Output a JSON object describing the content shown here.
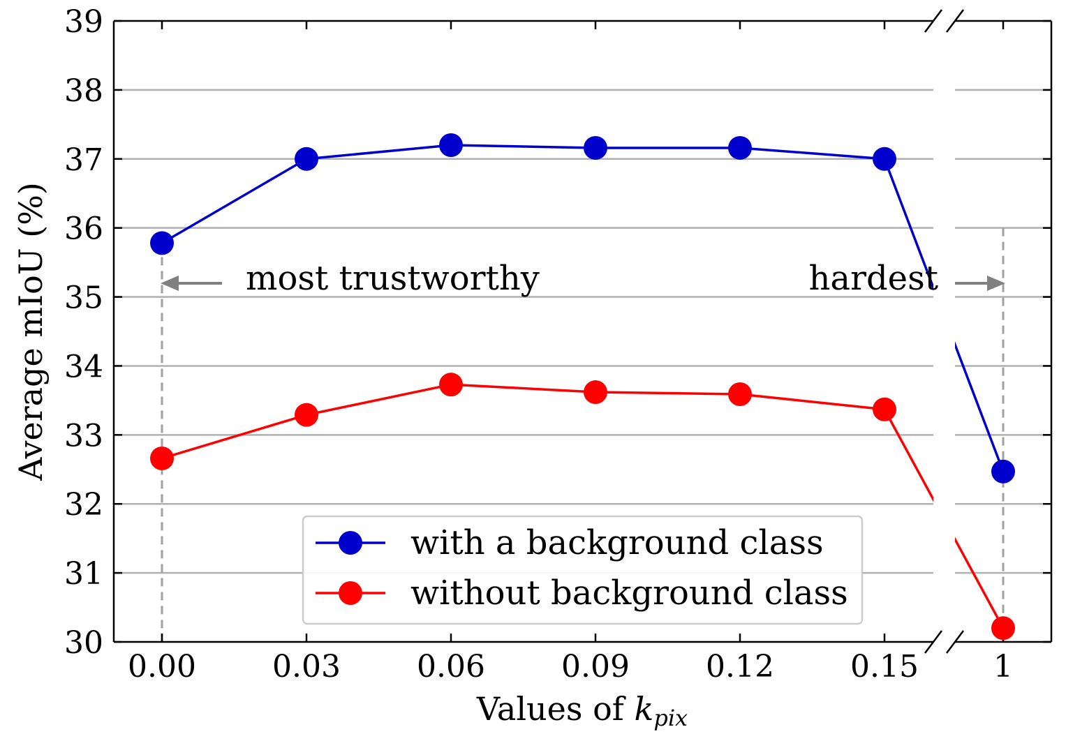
{
  "chart_data": {
    "type": "line",
    "x_categories": [
      "0.00",
      "0.03",
      "0.06",
      "0.09",
      "0.12",
      "0.15",
      "1"
    ],
    "ylabel": "Average mIoU (%)",
    "xlabel_prefix": "Values of ",
    "xlabel_var": "k",
    "xlabel_sub": "pix",
    "ylim": [
      30,
      39
    ],
    "yticks": [
      "30",
      "31",
      "32",
      "33",
      "34",
      "35",
      "36",
      "37",
      "38",
      "39"
    ],
    "grid": true,
    "axis_break": true,
    "legend_position": "lower-center",
    "series": [
      {
        "name": "with a background class",
        "color": "#0000cc",
        "values": [
          35.78,
          37.0,
          37.2,
          37.16,
          37.16,
          37.0,
          32.47
        ]
      },
      {
        "name": "without background class",
        "color": "#ff0000",
        "values": [
          32.66,
          33.29,
          33.73,
          33.62,
          33.59,
          33.37,
          30.2
        ]
      }
    ],
    "annotations": {
      "left": "most trustworthy",
      "right": "hardest"
    }
  }
}
